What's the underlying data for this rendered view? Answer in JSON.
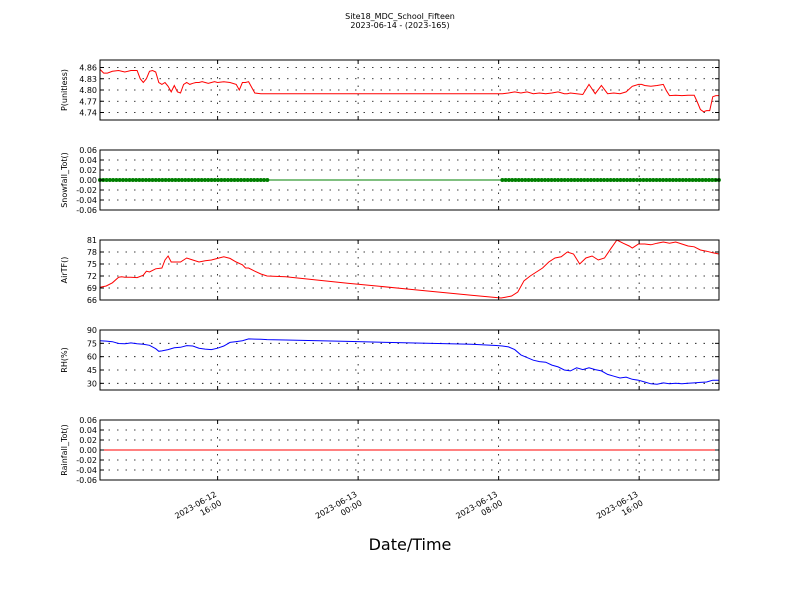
{
  "figure": {
    "title": "Site18_MDC_School_Fifteen",
    "subtitle": "2023-06-14 - (2023-165)",
    "xlabel": "Date/Time",
    "x_ticks": [
      {
        "t": 0.19,
        "line1": "2023-06-12",
        "line2": "16:00"
      },
      {
        "t": 0.417,
        "line1": "2023-06-13",
        "line2": "00:00"
      },
      {
        "t": 0.644,
        "line1": "2023-06-13",
        "line2": "08:00"
      },
      {
        "t": 0.871,
        "line1": "2023-06-13",
        "line2": "16:00"
      }
    ]
  },
  "chart_data": [
    {
      "type": "line",
      "ylabel": "P(unitless)",
      "color": "#ff0000",
      "ylim": [
        4.72,
        4.88
      ],
      "yticks": [
        4.74,
        4.77,
        4.8,
        4.83,
        4.86
      ],
      "ytick_labels": [
        "4.74",
        "4.77",
        "4.80",
        "4.83",
        "4.86"
      ],
      "x": [
        0,
        0.006,
        0.012,
        0.02,
        0.03,
        0.04,
        0.05,
        0.06,
        0.065,
        0.07,
        0.075,
        0.08,
        0.085,
        0.09,
        0.095,
        0.1,
        0.105,
        0.11,
        0.115,
        0.12,
        0.125,
        0.13,
        0.135,
        0.14,
        0.145,
        0.15,
        0.155,
        0.16,
        0.165,
        0.17,
        0.175,
        0.18,
        0.185,
        0.19,
        0.2,
        0.21,
        0.22,
        0.225,
        0.23,
        0.235,
        0.24,
        0.25,
        0.26,
        0.265,
        0.27,
        0.3,
        0.4,
        0.5,
        0.6,
        0.65,
        0.66,
        0.67,
        0.68,
        0.69,
        0.7,
        0.71,
        0.72,
        0.73,
        0.74,
        0.75,
        0.755,
        0.76,
        0.77,
        0.78,
        0.79,
        0.8,
        0.81,
        0.82,
        0.83,
        0.84,
        0.85,
        0.86,
        0.87,
        0.875,
        0.88,
        0.89,
        0.9,
        0.91,
        0.915,
        0.92,
        0.93,
        0.94,
        0.95,
        0.955,
        0.96,
        0.965,
        0.97,
        0.975,
        0.98,
        0.985,
        0.99,
        0.995,
        1.0
      ],
      "y": [
        4.855,
        4.845,
        4.845,
        4.85,
        4.852,
        4.848,
        4.852,
        4.852,
        4.83,
        4.82,
        4.83,
        4.85,
        4.852,
        4.848,
        4.82,
        4.815,
        4.82,
        4.81,
        4.795,
        4.812,
        4.795,
        4.792,
        4.815,
        4.82,
        4.815,
        4.818,
        4.82,
        4.82,
        4.822,
        4.82,
        4.818,
        4.82,
        4.822,
        4.82,
        4.822,
        4.82,
        4.815,
        4.8,
        4.82,
        4.82,
        4.822,
        4.792,
        4.79,
        4.79,
        4.79,
        4.79,
        4.79,
        4.79,
        4.79,
        4.79,
        4.792,
        4.795,
        4.792,
        4.795,
        4.79,
        4.792,
        4.79,
        4.792,
        4.795,
        4.79,
        4.79,
        4.792,
        4.79,
        4.788,
        4.815,
        4.79,
        4.812,
        4.79,
        4.792,
        4.79,
        4.795,
        4.81,
        4.815,
        4.815,
        4.812,
        4.81,
        4.812,
        4.815,
        4.798,
        4.785,
        4.786,
        4.785,
        4.786,
        4.786,
        4.786,
        4.768,
        4.748,
        4.742,
        4.745,
        4.745,
        4.782,
        4.785,
        4.785
      ]
    },
    {
      "type": "scatter",
      "ylabel": "Snowfall_Tot()",
      "color": "#007f00",
      "ylim": [
        -0.06,
        0.06
      ],
      "yticks": [
        -0.06,
        -0.04,
        -0.02,
        0.0,
        0.02,
        0.04,
        0.06
      ],
      "ytick_labels": [
        "-0.06",
        "-0.04",
        "-0.02",
        "0.00",
        "0.02",
        "0.04",
        "0.06"
      ],
      "value": 0.0,
      "x_start": 0.0,
      "x_end": 1.0,
      "marker_ranges": [
        [
          0.0,
          0.272,
          0.0053
        ],
        [
          0.65,
          1.0,
          0.0053
        ]
      ]
    },
    {
      "type": "line",
      "ylabel": "AirTF()",
      "color": "#ff0000",
      "ylim": [
        66,
        81
      ],
      "yticks": [
        66,
        69,
        72,
        75,
        78,
        81
      ],
      "ytick_labels": [
        "66",
        "69",
        "72",
        "75",
        "78",
        "81"
      ],
      "x": [
        0,
        0.01,
        0.02,
        0.03,
        0.035,
        0.04,
        0.05,
        0.06,
        0.07,
        0.075,
        0.08,
        0.09,
        0.1,
        0.105,
        0.11,
        0.115,
        0.12,
        0.13,
        0.14,
        0.15,
        0.16,
        0.17,
        0.18,
        0.19,
        0.2,
        0.21,
        0.22,
        0.23,
        0.235,
        0.24,
        0.25,
        0.26,
        0.27,
        0.3,
        0.4,
        0.5,
        0.6,
        0.648,
        0.655,
        0.665,
        0.675,
        0.685,
        0.695,
        0.705,
        0.715,
        0.725,
        0.735,
        0.745,
        0.755,
        0.765,
        0.775,
        0.785,
        0.795,
        0.805,
        0.815,
        0.825,
        0.835,
        0.845,
        0.855,
        0.86,
        0.87,
        0.88,
        0.89,
        0.9,
        0.91,
        0.92,
        0.93,
        0.94,
        0.95,
        0.96,
        0.97,
        0.98,
        0.99,
        1.0
      ],
      "y": [
        69.2,
        69.5,
        70.3,
        71.7,
        71.8,
        71.7,
        71.7,
        71.6,
        72.2,
        73.2,
        73.0,
        73.8,
        74.0,
        76.0,
        77.0,
        75.5,
        75.5,
        75.5,
        76.5,
        76.0,
        75.5,
        75.8,
        76.0,
        76.4,
        76.8,
        76.4,
        75.5,
        74.8,
        74.0,
        74.0,
        73.2,
        72.5,
        72.0,
        71.8,
        70.2,
        68.7,
        67.2,
        66.5,
        66.7,
        67.0,
        68.0,
        70.8,
        72.0,
        73.0,
        74.0,
        75.5,
        76.5,
        76.8,
        78.0,
        77.5,
        75.0,
        76.5,
        77.0,
        76.0,
        76.5,
        78.8,
        81.0,
        80.2,
        79.5,
        79.0,
        80.0,
        80.0,
        79.8,
        80.2,
        80.5,
        80.2,
        80.5,
        80.0,
        79.5,
        79.3,
        78.5,
        78.2,
        77.8,
        77.5
      ]
    },
    {
      "type": "line",
      "ylabel": "RH(%)",
      "color": "#0000ff",
      "ylim": [
        22.5,
        90
      ],
      "yticks": [
        30,
        45,
        60,
        75,
        90
      ],
      "ytick_labels": [
        "30",
        "45",
        "60",
        "75",
        "90"
      ],
      "x": [
        0,
        0.01,
        0.02,
        0.03,
        0.04,
        0.05,
        0.06,
        0.07,
        0.08,
        0.09,
        0.095,
        0.1,
        0.11,
        0.12,
        0.13,
        0.14,
        0.15,
        0.16,
        0.17,
        0.18,
        0.19,
        0.2,
        0.21,
        0.22,
        0.23,
        0.24,
        0.25,
        0.26,
        0.27,
        0.3,
        0.4,
        0.5,
        0.6,
        0.64,
        0.65,
        0.66,
        0.67,
        0.68,
        0.69,
        0.7,
        0.71,
        0.72,
        0.73,
        0.74,
        0.75,
        0.76,
        0.77,
        0.78,
        0.79,
        0.8,
        0.81,
        0.82,
        0.83,
        0.84,
        0.85,
        0.86,
        0.87,
        0.88,
        0.89,
        0.9,
        0.91,
        0.92,
        0.93,
        0.94,
        0.95,
        0.96,
        0.97,
        0.98,
        0.99,
        1.0
      ],
      "y": [
        77.8,
        77.5,
        76.8,
        74.8,
        74.5,
        75.5,
        74.5,
        74.0,
        72.8,
        69.0,
        66.0,
        66.5,
        68.0,
        70.0,
        70.5,
        72.5,
        72.0,
        69.5,
        68.5,
        68.0,
        69.5,
        72.0,
        76.0,
        77.0,
        78.0,
        80.0,
        79.8,
        79.5,
        79.2,
        78.8,
        77.2,
        75.5,
        74.0,
        72.6,
        72.0,
        71.0,
        68.0,
        62.0,
        59.0,
        56.0,
        54.5,
        53.8,
        50.5,
        48.5,
        45.0,
        44.0,
        47.5,
        45.5,
        47.5,
        45.5,
        44.0,
        40.0,
        38.0,
        36.0,
        37.0,
        34.5,
        33.5,
        31.5,
        29.5,
        29.0,
        30.5,
        29.5,
        30.0,
        29.5,
        30.0,
        30.5,
        31.0,
        31.5,
        33.5,
        33.5
      ]
    },
    {
      "type": "line",
      "ylabel": "Rainfall_Tot()",
      "color": "#ff0000",
      "ylim": [
        -0.06,
        0.06
      ],
      "yticks": [
        -0.06,
        -0.04,
        -0.02,
        0.0,
        0.02,
        0.04,
        0.06
      ],
      "ytick_labels": [
        "-0.06",
        "-0.04",
        "-0.02",
        "0.00",
        "0.02",
        "0.04",
        "0.06"
      ],
      "x": [
        0.0,
        1.0
      ],
      "y": [
        0.0,
        0.0
      ]
    }
  ]
}
